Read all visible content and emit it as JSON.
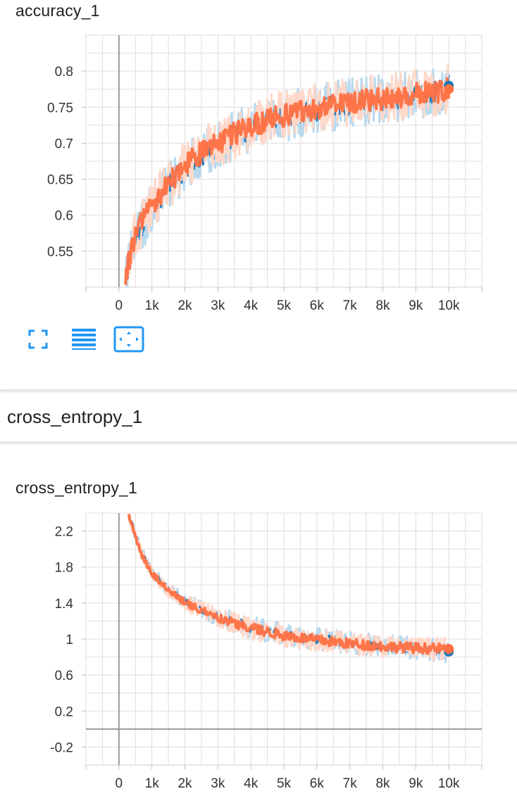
{
  "colors": {
    "series_dark": "#1f77b4",
    "series_dark_raw": "#b9d9ee",
    "series_orange": "#ff7043",
    "series_orange_raw": "#ffd8c9",
    "grid": "#dddddd",
    "axis": "#999999",
    "toolbar_icon": "#2196f3"
  },
  "toolbar": {
    "icons": [
      "fullscreen-icon",
      "log-scale-icon",
      "fit-domain-icon"
    ]
  },
  "group": {
    "title": "cross_entropy_1"
  },
  "chart_data": [
    {
      "type": "line",
      "title": "accuracy_1",
      "xlabel": "",
      "ylabel": "",
      "xlim": [
        -1000,
        11000
      ],
      "ylim": [
        0.5,
        0.85
      ],
      "x_ticks": [
        {
          "value": 0,
          "label": "0"
        },
        {
          "value": 1000,
          "label": "1k"
        },
        {
          "value": 2000,
          "label": "2k"
        },
        {
          "value": 3000,
          "label": "3k"
        },
        {
          "value": 4000,
          "label": "4k"
        },
        {
          "value": 5000,
          "label": "5k"
        },
        {
          "value": 6000,
          "label": "6k"
        },
        {
          "value": 7000,
          "label": "7k"
        },
        {
          "value": 8000,
          "label": "8k"
        },
        {
          "value": 9000,
          "label": "9k"
        },
        {
          "value": 10000,
          "label": "10k"
        }
      ],
      "y_ticks": [
        {
          "value": 0.55,
          "label": "0.55"
        },
        {
          "value": 0.6,
          "label": "0.6"
        },
        {
          "value": 0.65,
          "label": "0.65"
        },
        {
          "value": 0.7,
          "label": "0.7"
        },
        {
          "value": 0.75,
          "label": "0.75"
        },
        {
          "value": 0.8,
          "label": "0.8"
        }
      ],
      "grid": true,
      "series": [
        {
          "color": "#1f77b4",
          "raw_color": "#b9d9ee",
          "x": [
            200,
            500,
            1000,
            1500,
            2000,
            2500,
            3000,
            3500,
            4000,
            4500,
            5000,
            5500,
            6000,
            6500,
            7000,
            7500,
            8000,
            8500,
            9000,
            9500,
            10000
          ],
          "y": [
            0.51,
            0.57,
            0.61,
            0.64,
            0.665,
            0.685,
            0.695,
            0.71,
            0.72,
            0.73,
            0.737,
            0.742,
            0.747,
            0.752,
            0.755,
            0.758,
            0.761,
            0.764,
            0.767,
            0.77,
            0.78
          ]
        },
        {
          "color": "#ff7043",
          "raw_color": "#ffd8c9",
          "x": [
            200,
            500,
            1000,
            1500,
            2000,
            2500,
            3000,
            3500,
            4000,
            4500,
            5000,
            5500,
            6000,
            6500,
            7000,
            7500,
            8000,
            8500,
            9000,
            9500,
            10000
          ],
          "y": [
            0.515,
            0.575,
            0.615,
            0.643,
            0.668,
            0.688,
            0.7,
            0.713,
            0.723,
            0.732,
            0.739,
            0.744,
            0.749,
            0.753,
            0.757,
            0.759,
            0.762,
            0.765,
            0.768,
            0.771,
            0.775
          ]
        }
      ]
    },
    {
      "type": "line",
      "title": "cross_entropy_1",
      "xlabel": "",
      "ylabel": "",
      "xlim": [
        -1000,
        11000
      ],
      "ylim": [
        -0.4,
        2.4
      ],
      "x_ticks": [
        {
          "value": 0,
          "label": "0"
        },
        {
          "value": 1000,
          "label": "1k"
        },
        {
          "value": 2000,
          "label": "2k"
        },
        {
          "value": 3000,
          "label": "3k"
        },
        {
          "value": 4000,
          "label": "4k"
        },
        {
          "value": 5000,
          "label": "5k"
        },
        {
          "value": 6000,
          "label": "6k"
        },
        {
          "value": 7000,
          "label": "7k"
        },
        {
          "value": 8000,
          "label": "8k"
        },
        {
          "value": 9000,
          "label": "9k"
        },
        {
          "value": 10000,
          "label": "10k"
        }
      ],
      "y_ticks": [
        {
          "value": -0.2,
          "label": "-0.2"
        },
        {
          "value": 0.2,
          "label": "0.2"
        },
        {
          "value": 0.6,
          "label": "0.6"
        },
        {
          "value": 1,
          "label": "1"
        },
        {
          "value": 1.4,
          "label": "1.4"
        },
        {
          "value": 1.8,
          "label": "1.8"
        },
        {
          "value": 2.2,
          "label": "2.2"
        }
      ],
      "grid": true,
      "series": [
        {
          "color": "#1f77b4",
          "raw_color": "#b9d9ee",
          "x": [
            300,
            500,
            700,
            1000,
            1500,
            2000,
            2500,
            3000,
            3500,
            4000,
            5000,
            6000,
            7000,
            8000,
            9000,
            10000
          ],
          "y": [
            2.4,
            2.15,
            1.95,
            1.75,
            1.55,
            1.42,
            1.33,
            1.25,
            1.19,
            1.13,
            1.05,
            1.0,
            0.96,
            0.93,
            0.9,
            0.86
          ]
        },
        {
          "color": "#ff7043",
          "raw_color": "#ffd8c9",
          "x": [
            300,
            500,
            700,
            1000,
            1500,
            2000,
            2500,
            3000,
            3500,
            4000,
            5000,
            6000,
            7000,
            8000,
            9000,
            10000
          ],
          "y": [
            2.38,
            2.13,
            1.93,
            1.73,
            1.54,
            1.41,
            1.32,
            1.24,
            1.18,
            1.12,
            1.04,
            0.99,
            0.95,
            0.92,
            0.9,
            0.89
          ]
        }
      ]
    }
  ]
}
